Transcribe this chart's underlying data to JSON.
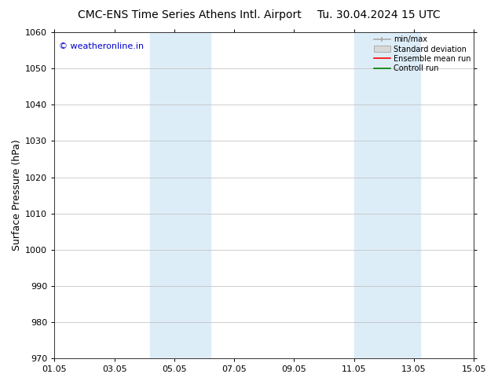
{
  "title_left": "CMC-ENS Time Series Athens Intl. Airport",
  "title_right": "Tu. 30.04.2024 15 UTC",
  "ylabel": "Surface Pressure (hPa)",
  "ylim": [
    970,
    1060
  ],
  "yticks": [
    970,
    980,
    990,
    1000,
    1010,
    1020,
    1030,
    1040,
    1050,
    1060
  ],
  "xlim_days": [
    0,
    14
  ],
  "xtick_labels": [
    "01.05",
    "03.05",
    "05.05",
    "07.05",
    "09.05",
    "11.05",
    "13.05",
    "15.05"
  ],
  "xtick_positions": [
    0,
    2,
    4,
    6,
    8,
    10,
    12,
    14
  ],
  "shaded_bands": [
    {
      "xmin": 3.2,
      "xmax": 5.2
    },
    {
      "xmin": 10.0,
      "xmax": 12.2
    }
  ],
  "shade_color": "#ddedf8",
  "watermark_text": "© weatheronline.in",
  "watermark_color": "#0000cc",
  "legend_labels": [
    "min/max",
    "Standard deviation",
    "Ensemble mean run",
    "Controll run"
  ],
  "legend_colors_line": [
    "#aaaaaa",
    "#cccccc",
    "#ff0000",
    "#008000"
  ],
  "bg_color": "#ffffff",
  "grid_color": "#bbbbbb",
  "title_fontsize": 10,
  "tick_fontsize": 8,
  "ylabel_fontsize": 9,
  "legend_fontsize": 7
}
